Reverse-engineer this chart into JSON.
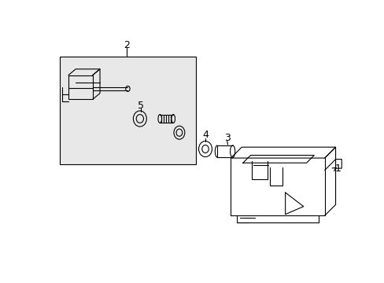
{
  "bg_color": "#ffffff",
  "line_color": "#000000",
  "box_fill": "#e8e8e8",
  "label_1": "1",
  "label_2": "2",
  "label_3": "3",
  "label_4": "4",
  "label_5": "5",
  "label_fontsize": 9
}
